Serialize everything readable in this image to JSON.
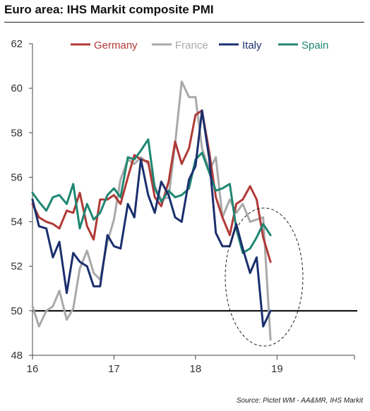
{
  "title": "Euro area: IHS Markit composite PMI",
  "source": "Source: Pictet WM - AA&MR, IHS Markit",
  "chart_data": {
    "type": "line",
    "title": "Euro area: IHS Markit composite PMI",
    "xlabel": "",
    "ylabel": "",
    "xlim": [
      2016,
      2019.95
    ],
    "ylim": [
      48,
      62
    ],
    "x_ticks": [
      {
        "value": 2016,
        "label": "16"
      },
      {
        "value": 2017,
        "label": "17"
      },
      {
        "value": 2018,
        "label": "18"
      },
      {
        "value": 2019,
        "label": "19"
      }
    ],
    "y_ticks": [
      48,
      50,
      52,
      54,
      56,
      58,
      60,
      62
    ],
    "reference_line": 50,
    "legend_position": "top",
    "annotation": "dashed ellipse highlighting late 2018 readings",
    "x": [
      2016.0,
      2016.08,
      2016.17,
      2016.25,
      2016.33,
      2016.42,
      2016.5,
      2016.58,
      2016.67,
      2016.75,
      2016.83,
      2016.92,
      2017.0,
      2017.08,
      2017.17,
      2017.25,
      2017.33,
      2017.42,
      2017.5,
      2017.58,
      2017.67,
      2017.75,
      2017.83,
      2017.92,
      2018.0,
      2018.08,
      2018.17,
      2018.25,
      2018.33,
      2018.42,
      2018.5,
      2018.58,
      2018.67,
      2018.75,
      2018.83,
      2018.92
    ],
    "series": [
      {
        "name": "Germany",
        "color": "#b03a37",
        "values": [
          54.8,
          54.2,
          54.0,
          53.9,
          53.7,
          54.5,
          54.4,
          55.3,
          53.8,
          53.2,
          55.0,
          55.0,
          55.2,
          54.8,
          56.0,
          57.0,
          56.8,
          56.7,
          55.1,
          54.7,
          55.8,
          57.6,
          56.6,
          57.3,
          58.8,
          59.0,
          57.1,
          55.1,
          54.2,
          53.4,
          54.8,
          55.0,
          55.6,
          55.0,
          53.3,
          52.2
        ]
      },
      {
        "name": "France",
        "color": "#a9a9a9",
        "values": [
          50.2,
          49.3,
          50.0,
          50.2,
          50.9,
          49.6,
          50.1,
          51.9,
          52.7,
          51.7,
          51.4,
          53.1,
          54.1,
          55.9,
          56.8,
          56.6,
          56.9,
          56.6,
          55.6,
          55.0,
          55.1,
          57.5,
          60.3,
          59.6,
          59.6,
          57.3,
          56.3,
          56.9,
          54.2,
          55.0,
          54.4,
          54.8,
          54.0,
          54.1,
          54.2,
          48.7
        ]
      },
      {
        "name": "Italy",
        "color": "#1b2f6e",
        "values": [
          55.0,
          53.8,
          53.7,
          52.4,
          53.1,
          50.8,
          52.6,
          52.2,
          52.0,
          51.1,
          51.1,
          53.4,
          52.9,
          52.8,
          54.8,
          54.2,
          56.8,
          55.2,
          54.4,
          55.8,
          55.2,
          54.2,
          54.0,
          55.9,
          56.5,
          59.0,
          56.8,
          53.5,
          52.9,
          52.9,
          53.9,
          52.8,
          51.7,
          52.4,
          49.3,
          50.0
        ]
      },
      {
        "name": "Spain",
        "color": "#1f8672",
        "values": [
          55.3,
          54.9,
          54.5,
          55.1,
          55.2,
          54.8,
          55.7,
          53.7,
          54.8,
          54.1,
          54.4,
          55.2,
          55.5,
          55.1,
          56.9,
          56.8,
          57.2,
          57.7,
          55.5,
          54.9,
          55.4,
          55.1,
          55.2,
          55.5,
          56.8,
          57.1,
          56.2,
          55.4,
          55.5,
          55.7,
          53.7,
          52.6,
          52.8,
          53.3,
          53.9,
          53.4
        ]
      }
    ]
  }
}
